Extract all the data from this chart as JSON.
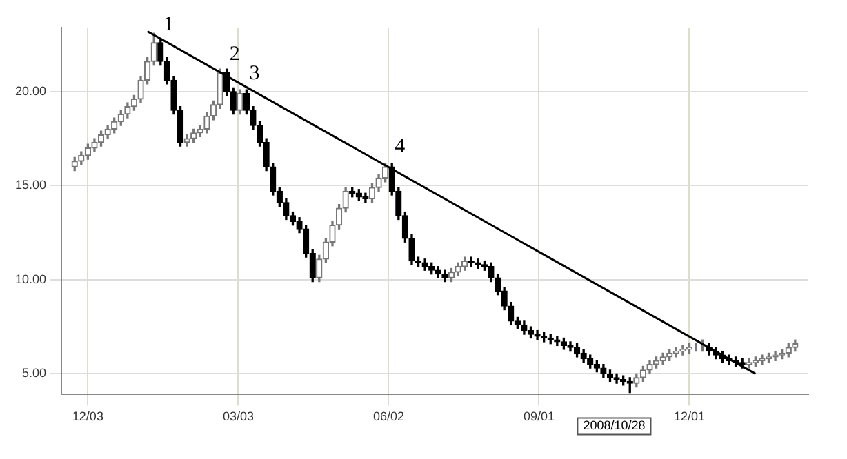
{
  "chart_data": {
    "type": "candlestick",
    "x": [
      "2007-11-25",
      "2007-11-29",
      "2007-12-03",
      "2007-12-07",
      "2007-12-11",
      "2007-12-15",
      "2007-12-19",
      "2007-12-23",
      "2007-12-27",
      "2007-12-31",
      "2008-01-04",
      "2008-01-08",
      "2008-01-12",
      "2008-01-16",
      "2008-01-20",
      "2008-01-24",
      "2008-01-28",
      "2008-02-01",
      "2008-02-05",
      "2008-02-09",
      "2008-02-13",
      "2008-02-17",
      "2008-02-21",
      "2008-02-25",
      "2008-02-29",
      "2008-03-04",
      "2008-03-08",
      "2008-03-12",
      "2008-03-16",
      "2008-03-20",
      "2008-03-24",
      "2008-03-28",
      "2008-04-01",
      "2008-04-05",
      "2008-04-09",
      "2008-04-13",
      "2008-04-17",
      "2008-04-21",
      "2008-04-25",
      "2008-04-29",
      "2008-05-03",
      "2008-05-07",
      "2008-05-11",
      "2008-05-15",
      "2008-05-19",
      "2008-05-23",
      "2008-05-27",
      "2008-05-31",
      "2008-06-04",
      "2008-06-08",
      "2008-06-12",
      "2008-06-16",
      "2008-06-20",
      "2008-06-24",
      "2008-06-28",
      "2008-07-02",
      "2008-07-06",
      "2008-07-10",
      "2008-07-14",
      "2008-07-18",
      "2008-07-22",
      "2008-07-26",
      "2008-07-30",
      "2008-08-03",
      "2008-08-07",
      "2008-08-11",
      "2008-08-15",
      "2008-08-19",
      "2008-08-23",
      "2008-08-27",
      "2008-08-31",
      "2008-09-04",
      "2008-09-08",
      "2008-09-12",
      "2008-09-16",
      "2008-09-20",
      "2008-09-24",
      "2008-09-28",
      "2008-10-02",
      "2008-10-06",
      "2008-10-10",
      "2008-10-14",
      "2008-10-18",
      "2008-10-22",
      "2008-10-26",
      "2008-10-30",
      "2008-11-03",
      "2008-11-07",
      "2008-11-11",
      "2008-11-15",
      "2008-11-19",
      "2008-11-23",
      "2008-11-27",
      "2008-12-01",
      "2008-12-05",
      "2008-12-09",
      "2008-12-13",
      "2008-12-17",
      "2008-12-21",
      "2008-12-25",
      "2008-12-29",
      "2009-01-02",
      "2009-01-06",
      "2009-01-10",
      "2009-01-14",
      "2009-01-18",
      "2009-01-22",
      "2009-01-26",
      "2009-01-30",
      "2009-02-03"
    ],
    "ohlc": [
      [
        16.0,
        16.5,
        15.8,
        16.3
      ],
      [
        16.3,
        16.8,
        16.1,
        16.6
      ],
      [
        16.6,
        17.2,
        16.4,
        17.0
      ],
      [
        17.0,
        17.5,
        16.8,
        17.3
      ],
      [
        17.3,
        17.9,
        17.1,
        17.7
      ],
      [
        17.7,
        18.2,
        17.5,
        18.0
      ],
      [
        18.0,
        18.6,
        17.8,
        18.4
      ],
      [
        18.4,
        19.0,
        18.2,
        18.8
      ],
      [
        18.8,
        19.4,
        18.6,
        19.2
      ],
      [
        19.2,
        19.8,
        19.0,
        19.6
      ],
      [
        19.6,
        20.8,
        19.4,
        20.6
      ],
      [
        20.6,
        21.8,
        20.4,
        21.6
      ],
      [
        21.6,
        23.1,
        21.4,
        22.6
      ],
      [
        22.6,
        22.8,
        21.4,
        21.6
      ],
      [
        21.6,
        21.8,
        20.4,
        20.6
      ],
      [
        20.6,
        20.8,
        18.8,
        19.0
      ],
      [
        19.0,
        19.2,
        17.1,
        17.3
      ],
      [
        17.3,
        17.7,
        17.1,
        17.5
      ],
      [
        17.5,
        18.0,
        17.3,
        17.8
      ],
      [
        17.8,
        18.2,
        17.6,
        18.0
      ],
      [
        18.0,
        18.9,
        17.8,
        18.7
      ],
      [
        18.7,
        19.5,
        18.5,
        19.3
      ],
      [
        19.3,
        21.2,
        19.1,
        21.0
      ],
      [
        21.0,
        21.2,
        19.8,
        20.0
      ],
      [
        20.0,
        20.2,
        18.8,
        19.0
      ],
      [
        19.0,
        20.1,
        18.8,
        19.9
      ],
      [
        19.9,
        20.1,
        18.8,
        19.0
      ],
      [
        19.0,
        19.2,
        18.0,
        18.2
      ],
      [
        18.2,
        18.4,
        17.1,
        17.3
      ],
      [
        17.3,
        17.5,
        15.8,
        16.0
      ],
      [
        16.0,
        16.2,
        14.5,
        14.7
      ],
      [
        14.7,
        14.9,
        13.9,
        14.1
      ],
      [
        14.1,
        14.3,
        13.2,
        13.4
      ],
      [
        13.4,
        13.6,
        12.9,
        13.1
      ],
      [
        13.1,
        13.3,
        12.5,
        12.7
      ],
      [
        12.7,
        12.9,
        11.2,
        11.4
      ],
      [
        11.4,
        11.6,
        9.9,
        10.1
      ],
      [
        10.1,
        11.3,
        9.9,
        11.1
      ],
      [
        11.1,
        12.2,
        10.9,
        12.0
      ],
      [
        12.0,
        13.1,
        11.8,
        12.9
      ],
      [
        12.9,
        14.0,
        12.7,
        13.8
      ],
      [
        13.8,
        14.9,
        13.6,
        14.7
      ],
      [
        14.7,
        14.9,
        14.4,
        14.6
      ],
      [
        14.6,
        14.8,
        14.2,
        14.4
      ],
      [
        14.4,
        14.6,
        14.1,
        14.3
      ],
      [
        14.3,
        15.1,
        14.1,
        14.9
      ],
      [
        14.9,
        15.6,
        14.7,
        15.4
      ],
      [
        15.4,
        16.2,
        15.2,
        16.0
      ],
      [
        16.0,
        16.2,
        14.5,
        14.7
      ],
      [
        14.7,
        14.9,
        13.2,
        13.4
      ],
      [
        13.4,
        13.6,
        12.0,
        12.2
      ],
      [
        12.2,
        12.4,
        10.8,
        11.0
      ],
      [
        11.0,
        11.2,
        10.7,
        10.9
      ],
      [
        10.9,
        11.1,
        10.5,
        10.7
      ],
      [
        10.7,
        10.9,
        10.3,
        10.5
      ],
      [
        10.5,
        10.7,
        10.1,
        10.3
      ],
      [
        10.3,
        10.5,
        9.9,
        10.1
      ],
      [
        10.1,
        10.6,
        9.9,
        10.4
      ],
      [
        10.4,
        10.9,
        10.2,
        10.7
      ],
      [
        10.7,
        11.2,
        10.5,
        11.0
      ],
      [
        11.0,
        11.2,
        10.7,
        10.9
      ],
      [
        10.9,
        11.1,
        10.6,
        10.8
      ],
      [
        10.8,
        11.0,
        10.5,
        10.7
      ],
      [
        10.7,
        10.9,
        9.9,
        10.1
      ],
      [
        10.1,
        10.3,
        9.2,
        9.4
      ],
      [
        9.4,
        9.6,
        8.4,
        8.6
      ],
      [
        8.6,
        8.8,
        7.6,
        7.8
      ],
      [
        7.8,
        8.0,
        7.4,
        7.6
      ],
      [
        7.6,
        7.8,
        7.1,
        7.3
      ],
      [
        7.3,
        7.5,
        6.9,
        7.1
      ],
      [
        7.1,
        7.3,
        6.8,
        7.0
      ],
      [
        7.0,
        7.2,
        6.7,
        6.9
      ],
      [
        6.9,
        7.1,
        6.6,
        6.8
      ],
      [
        6.8,
        7.0,
        6.5,
        6.7
      ],
      [
        6.7,
        6.9,
        6.3,
        6.5
      ],
      [
        6.5,
        6.7,
        6.2,
        6.4
      ],
      [
        6.4,
        6.6,
        5.9,
        6.1
      ],
      [
        6.1,
        6.3,
        5.6,
        5.8
      ],
      [
        5.8,
        6.0,
        5.3,
        5.5
      ],
      [
        5.5,
        5.7,
        5.1,
        5.3
      ],
      [
        5.3,
        5.5,
        4.8,
        5.0
      ],
      [
        5.0,
        5.2,
        4.6,
        4.8
      ],
      [
        4.8,
        5.0,
        4.5,
        4.7
      ],
      [
        4.7,
        4.9,
        4.4,
        4.6
      ],
      [
        4.6,
        4.8,
        4.0,
        4.5
      ],
      [
        4.5,
        5.0,
        4.3,
        4.8
      ],
      [
        4.8,
        5.4,
        4.6,
        5.2
      ],
      [
        5.2,
        5.7,
        5.0,
        5.5
      ],
      [
        5.5,
        5.9,
        5.3,
        5.7
      ],
      [
        5.7,
        6.1,
        5.5,
        5.9
      ],
      [
        5.9,
        6.3,
        5.7,
        6.1
      ],
      [
        6.1,
        6.4,
        5.9,
        6.2
      ],
      [
        6.2,
        6.5,
        6.0,
        6.3
      ],
      [
        6.3,
        6.6,
        6.1,
        6.4
      ],
      [
        6.4,
        6.6,
        6.2,
        6.4
      ],
      [
        6.4,
        6.8,
        6.2,
        6.4
      ],
      [
        6.4,
        6.6,
        6.0,
        6.2
      ],
      [
        6.2,
        6.4,
        5.8,
        6.0
      ],
      [
        6.0,
        6.2,
        5.6,
        5.8
      ],
      [
        5.8,
        6.0,
        5.5,
        5.7
      ],
      [
        5.7,
        5.9,
        5.4,
        5.6
      ],
      [
        5.6,
        5.8,
        5.3,
        5.5
      ],
      [
        5.5,
        5.8,
        5.3,
        5.6
      ],
      [
        5.6,
        5.9,
        5.4,
        5.7
      ],
      [
        5.7,
        6.0,
        5.5,
        5.8
      ],
      [
        5.8,
        6.1,
        5.6,
        5.9
      ],
      [
        5.9,
        6.2,
        5.7,
        6.0
      ],
      [
        6.0,
        6.3,
        5.8,
        6.1
      ],
      [
        6.1,
        6.6,
        5.9,
        6.4
      ],
      [
        6.4,
        6.8,
        6.2,
        6.6
      ]
    ],
    "series": [
      {
        "type": "line",
        "color": "#000000",
        "x": [
          "2008-01-08",
          "2009-01-10"
        ],
        "values": [
          23.2,
          5.0
        ]
      }
    ],
    "xlim": [
      "2007-11-17",
      "2009-02-11"
    ],
    "xticks": [
      {
        "value": "2007-12-03",
        "label": "12/03"
      },
      {
        "value": "2008-03-03",
        "label": "03/03"
      },
      {
        "value": "2008-06-02",
        "label": "06/02"
      },
      {
        "value": "2008-09-01",
        "label": "09/01"
      },
      {
        "value": "2008-12-01",
        "label": "12/01"
      }
    ],
    "ylim": [
      3.9,
      23.4
    ],
    "yticks": [
      {
        "value": 5,
        "label": "5.00"
      },
      {
        "value": 10,
        "label": "10.00"
      },
      {
        "value": 15,
        "label": "15.00"
      },
      {
        "value": 20,
        "label": "20.00"
      }
    ],
    "annotations": [
      {
        "text": "1",
        "x": "2008-01-16",
        "y": 23.0
      },
      {
        "text": "2",
        "x": "2008-02-25",
        "y": 21.4
      },
      {
        "text": "3",
        "x": "2008-03-08",
        "y": 20.4
      },
      {
        "text": "4",
        "x": "2008-06-04",
        "y": 16.5
      },
      "2008/10/28"
    ],
    "grid": true,
    "legend": false
  }
}
